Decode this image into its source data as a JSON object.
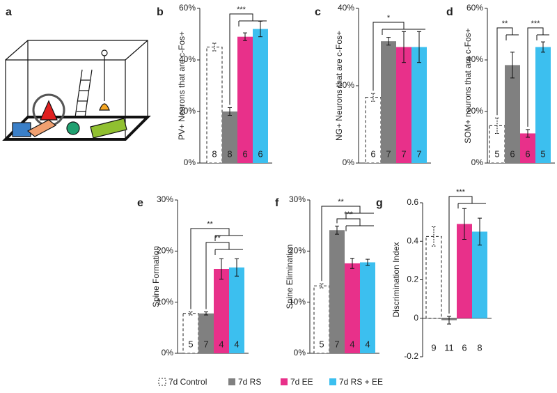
{
  "illustration": {
    "label": "a"
  },
  "legend": {
    "names": [
      "7d Control",
      "7d RS",
      "7d EE",
      "7d RS + EE"
    ],
    "colors": [
      "#ffffff",
      "#808080",
      "#e8308a",
      "#3cbfef"
    ]
  },
  "chart_data": [
    {
      "type": "bar",
      "panel": "b",
      "ylabel": "PV+ Neurons that are c-Fos+",
      "values": [
        45,
        20,
        49,
        52
      ],
      "errors": [
        1.5,
        1.5,
        1.5,
        3
      ],
      "n_labels": [
        8,
        8,
        6,
        6
      ],
      "ylim": [
        0,
        60
      ],
      "yticks": [
        {
          "value": 0,
          "label": "0%"
        },
        {
          "value": 20,
          "label": "20%"
        },
        {
          "value": 40,
          "label": "40%"
        },
        {
          "value": 60,
          "label": "60%"
        }
      ],
      "annotations": [
        "***"
      ]
    },
    {
      "type": "bar",
      "panel": "c",
      "ylabel": "NG+ Neurons that are c-Fos+",
      "values": [
        17,
        31.5,
        30,
        30
      ],
      "errors": [
        1,
        1,
        4,
        4
      ],
      "n_labels": [
        6,
        7,
        7,
        7
      ],
      "ylim": [
        0,
        40
      ],
      "yticks": [
        {
          "value": 0,
          "label": "0%"
        },
        {
          "value": 20,
          "label": "20%"
        },
        {
          "value": 40,
          "label": "40%"
        }
      ],
      "annotations": [
        "*"
      ]
    },
    {
      "type": "bar",
      "panel": "d",
      "ylabel": "SOM+ neurons that are c-Fos+",
      "values": [
        14.5,
        38,
        11.5,
        45
      ],
      "errors": [
        3,
        5,
        1.5,
        2
      ],
      "n_labels": [
        5,
        6,
        6,
        5
      ],
      "ylim": [
        0,
        60
      ],
      "yticks": [
        {
          "value": 0,
          "label": "0%"
        },
        {
          "value": 20,
          "label": "20%"
        },
        {
          "value": 40,
          "label": "40%"
        },
        {
          "value": 60,
          "label": "60%"
        }
      ],
      "annotations": [
        "**",
        "***"
      ]
    },
    {
      "type": "bar",
      "panel": "e",
      "ylabel": "Spine Formation",
      "values": [
        7.8,
        7.8,
        16.5,
        16.8
      ],
      "errors": [
        0.3,
        0.3,
        2,
        1.7
      ],
      "n_labels": [
        5,
        7,
        4,
        4
      ],
      "ylim": [
        0,
        30
      ],
      "yticks": [
        {
          "value": 0,
          "label": "0%"
        },
        {
          "value": 10,
          "label": "10%"
        },
        {
          "value": 20,
          "label": "20%"
        },
        {
          "value": 30,
          "label": "30%"
        }
      ],
      "annotations": [
        "**",
        "**"
      ]
    },
    {
      "type": "bar",
      "panel": "f",
      "ylabel": "Spine Elimination",
      "values": [
        13.2,
        24.1,
        17.6,
        17.8
      ],
      "errors": [
        0.4,
        0.8,
        1,
        0.6
      ],
      "n_labels": [
        5,
        7,
        4,
        4
      ],
      "ylim": [
        0,
        30
      ],
      "yticks": [
        {
          "value": 0,
          "label": "0%"
        },
        {
          "value": 10,
          "label": "10%"
        },
        {
          "value": 20,
          "label": "20%"
        },
        {
          "value": 30,
          "label": "30%"
        }
      ],
      "annotations": [
        "**",
        "***"
      ]
    },
    {
      "type": "bar",
      "panel": "g",
      "ylabel": "Discrimination Index",
      "values": [
        0.425,
        -0.01,
        0.49,
        0.45
      ],
      "errors": [
        0.05,
        0.02,
        0.08,
        0.07
      ],
      "n_labels": [
        9,
        11,
        6,
        8
      ],
      "ylim": [
        -0.2,
        0.6
      ],
      "yticks": [
        -0.2,
        0,
        0.2,
        0.4,
        0.6
      ],
      "annotations": [
        "***"
      ]
    }
  ]
}
